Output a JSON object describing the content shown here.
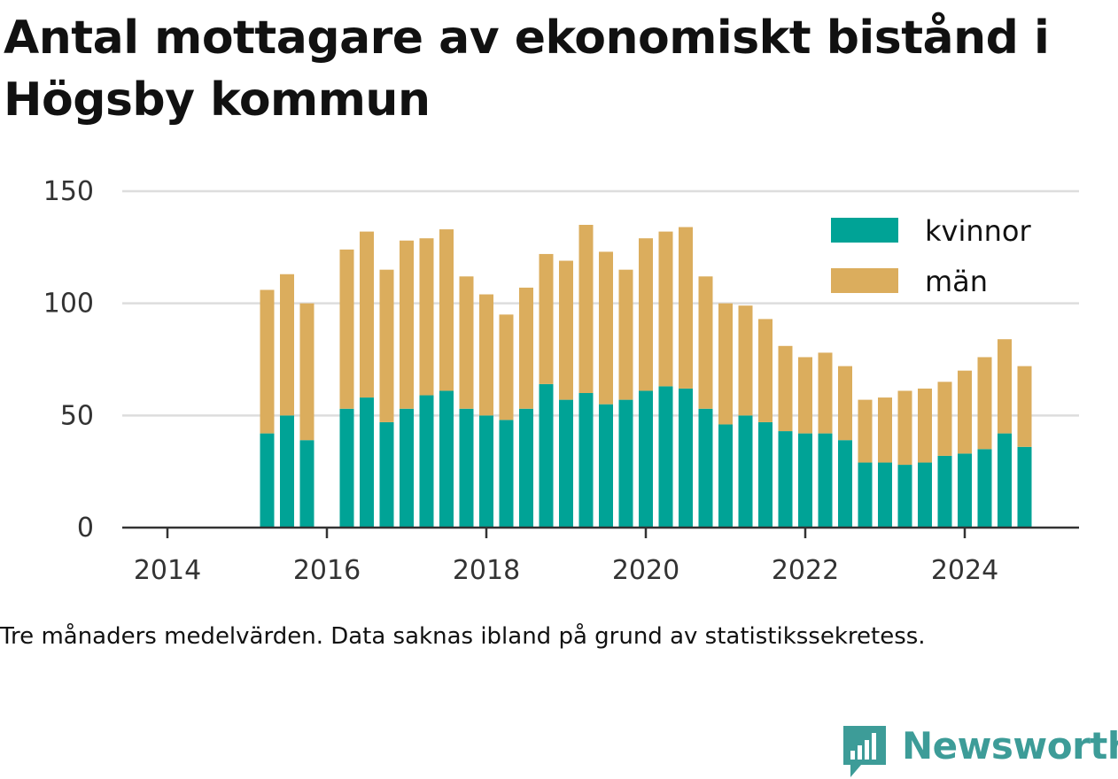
{
  "title": "Antal mottagare av ekonomiskt bistånd i Högsby kommun",
  "caption": "Tre månaders medelvärden. Data saknas ibland på grund av statistikssekretess.",
  "brand": {
    "name": "Newsworthy",
    "icon": "newsworthy-logo-icon",
    "color": "#3d9c98"
  },
  "chart_data": {
    "type": "bar",
    "stacked": true,
    "y_ticks": [
      0,
      50,
      100,
      150
    ],
    "ylim": [
      0,
      150
    ],
    "x_ticks": [
      "2014",
      "2016",
      "2018",
      "2020",
      "2022",
      "2024"
    ],
    "x_tick_years": [
      2014,
      2016,
      2018,
      2020,
      2022,
      2024
    ],
    "xlim": [
      2013.6,
      2025.5
    ],
    "grid": "horizontal",
    "legend_position": "top-right",
    "periods": [
      2015.25,
      2015.5,
      2015.75,
      2016.25,
      2016.5,
      2016.75,
      2017.0,
      2017.25,
      2017.5,
      2017.75,
      2018.0,
      2018.25,
      2018.5,
      2018.75,
      2019.0,
      2019.25,
      2019.5,
      2019.75,
      2020.0,
      2020.25,
      2020.5,
      2020.75,
      2021.0,
      2021.25,
      2021.5,
      2021.75,
      2022.0,
      2022.25,
      2022.5,
      2022.75,
      2023.0,
      2023.25,
      2023.5,
      2023.75,
      2024.0,
      2024.25,
      2024.5,
      2024.75
    ],
    "series": [
      {
        "name": "kvinnor",
        "color": "#00a396",
        "values": [
          42,
          50,
          39,
          53,
          58,
          47,
          53,
          59,
          61,
          53,
          50,
          48,
          53,
          64,
          57,
          60,
          55,
          57,
          61,
          63,
          62,
          53,
          46,
          50,
          47,
          43,
          42,
          42,
          39,
          29,
          29,
          28,
          29,
          32,
          33,
          35,
          42,
          36
        ]
      },
      {
        "name": "män",
        "color": "#dbad5d",
        "values": [
          64,
          63,
          61,
          71,
          74,
          68,
          75,
          70,
          72,
          59,
          54,
          47,
          54,
          58,
          62,
          75,
          68,
          58,
          68,
          69,
          72,
          59,
          54,
          49,
          46,
          38,
          34,
          36,
          33,
          28,
          29,
          33,
          33,
          33,
          37,
          41,
          42,
          36
        ]
      }
    ]
  }
}
